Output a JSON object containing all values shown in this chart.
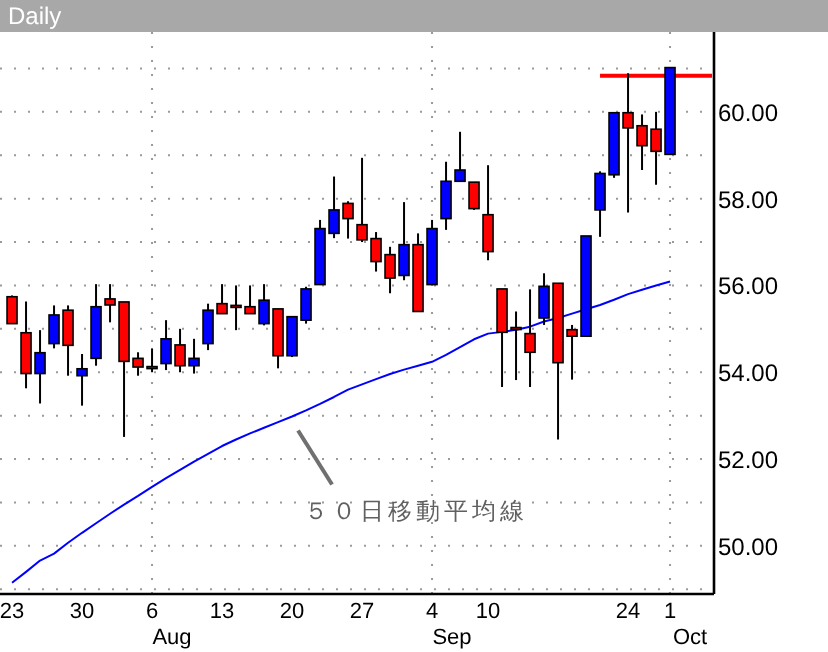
{
  "chart_data": {
    "type": "candlestick",
    "title": "Daily",
    "categories": [
      "23",
      null,
      null,
      null,
      null,
      "30",
      null,
      null,
      null,
      null,
      "6",
      null,
      null,
      null,
      null,
      "13",
      null,
      null,
      null,
      null,
      "20",
      null,
      null,
      null,
      null,
      "27",
      null,
      null,
      null,
      null,
      "4",
      null,
      null,
      null,
      "10",
      null,
      null,
      null,
      null,
      null,
      null,
      null,
      null,
      null,
      "24",
      null,
      null,
      "1",
      null,
      null,
      null
    ],
    "ohlc": [
      [
        55.74,
        55.77,
        55.12,
        55.12
      ],
      [
        54.91,
        55.63,
        53.63,
        53.97
      ],
      [
        53.97,
        54.97,
        53.28,
        54.45
      ],
      [
        54.66,
        55.54,
        54.55,
        55.32
      ],
      [
        55.43,
        55.54,
        53.92,
        54.62
      ],
      [
        53.92,
        54.42,
        53.23,
        54.08
      ],
      [
        54.32,
        56.03,
        54.15,
        55.51
      ],
      [
        55.69,
        56.03,
        55.15,
        55.55
      ],
      [
        55.62,
        55.62,
        52.51,
        54.25
      ],
      [
        54.32,
        54.46,
        53.92,
        54.12
      ],
      [
        54.13,
        54.55,
        54.0,
        54.12
      ],
      [
        54.2,
        55.2,
        54.05,
        54.77
      ],
      [
        54.63,
        55.0,
        54.0,
        54.15
      ],
      [
        54.15,
        54.77,
        53.97,
        54.32
      ],
      [
        54.66,
        55.58,
        54.51,
        55.43
      ],
      [
        55.58,
        56.03,
        55.35,
        55.35
      ],
      [
        55.54,
        56.0,
        54.97,
        55.52
      ],
      [
        55.51,
        56.0,
        55.35,
        55.35
      ],
      [
        55.12,
        56.03,
        55.08,
        55.66
      ],
      [
        55.46,
        55.46,
        54.09,
        54.38
      ],
      [
        54.38,
        55.28,
        54.35,
        55.28
      ],
      [
        55.2,
        55.97,
        55.12,
        55.92
      ],
      [
        56.02,
        57.51,
        56.02,
        57.31
      ],
      [
        57.2,
        58.51,
        57.09,
        57.74
      ],
      [
        57.89,
        57.94,
        57.08,
        57.54
      ],
      [
        57.4,
        58.94,
        57.0,
        57.05
      ],
      [
        57.08,
        57.23,
        56.32,
        56.55
      ],
      [
        56.71,
        56.89,
        55.82,
        56.17
      ],
      [
        56.23,
        57.92,
        56.12,
        56.94
      ],
      [
        56.94,
        57.2,
        55.4,
        55.4
      ],
      [
        56.02,
        57.51,
        56.02,
        57.31
      ],
      [
        57.54,
        58.85,
        57.28,
        58.4
      ],
      [
        58.4,
        59.54,
        58.4,
        58.66
      ],
      [
        58.38,
        58.38,
        57.74,
        57.77
      ],
      [
        57.63,
        58.77,
        56.58,
        56.78
      ],
      [
        55.92,
        55.92,
        53.66,
        54.92
      ],
      [
        55.03,
        55.4,
        53.82,
        55.0
      ],
      [
        54.89,
        55.91,
        53.66,
        54.46
      ],
      [
        55.25,
        56.28,
        55.09,
        55.98
      ],
      [
        56.05,
        56.05,
        52.45,
        54.22
      ],
      [
        54.98,
        55.09,
        53.83,
        54.83
      ],
      [
        54.83,
        57.14,
        54.83,
        57.14
      ],
      [
        57.74,
        58.63,
        57.12,
        58.58
      ],
      [
        58.55,
        59.98,
        58.48,
        59.98
      ],
      [
        59.98,
        60.89,
        57.68,
        59.63
      ],
      [
        59.68,
        59.94,
        58.66,
        59.22
      ],
      [
        59.6,
        60.0,
        58.32,
        59.09
      ],
      [
        59.02,
        61.02,
        59.02,
        61.02
      ],
      null,
      null,
      null
    ],
    "colors": [
      "#ff0000",
      "#ff0000",
      "#0000ff",
      "#0000ff",
      "#ff0000",
      "#0000ff",
      "#0000ff",
      "#ff0000",
      "#ff0000",
      "#ff0000",
      "#ff0000",
      "#0000ff",
      "#ff0000",
      "#0000ff",
      "#0000ff",
      "#ff0000",
      "#ff0000",
      "#ff0000",
      "#0000ff",
      "#ff0000",
      "#0000ff",
      "#0000ff",
      "#0000ff",
      "#0000ff",
      "#ff0000",
      "#ff0000",
      "#ff0000",
      "#ff0000",
      "#0000ff",
      "#ff0000",
      "#0000ff",
      "#0000ff",
      "#0000ff",
      "#ff0000",
      "#ff0000",
      "#ff0000",
      "#ff0000",
      "#ff0000",
      "#0000ff",
      "#ff0000",
      "#ff0000",
      "#0000ff",
      "#0000ff",
      "#0000ff",
      "#ff0000",
      "#ff0000",
      "#ff0000",
      "#0000ff",
      null,
      null,
      null
    ],
    "series": [
      {
        "type": "line",
        "color": "#0000ff",
        "values": [
          49.15,
          49.4,
          49.66,
          49.82,
          50.07,
          50.3,
          50.52,
          50.74,
          50.95,
          51.15,
          51.36,
          51.56,
          51.75,
          51.94,
          52.12,
          52.3,
          52.45,
          52.59,
          52.72,
          52.85,
          52.98,
          53.12,
          53.27,
          53.43,
          53.6,
          53.72,
          53.84,
          53.96,
          54.06,
          54.15,
          54.24,
          54.4,
          54.58,
          54.76,
          54.89,
          54.93,
          54.98,
          55.05,
          55.17,
          55.25,
          55.35,
          55.45,
          55.55,
          55.67,
          55.8,
          55.9,
          56.0,
          56.09,
          null,
          null,
          null
        ]
      },
      {
        "type": "line",
        "color": "#ff0000",
        "values": [
          null,
          null,
          null,
          null,
          null,
          null,
          null,
          null,
          null,
          null,
          null,
          null,
          null,
          null,
          null,
          null,
          null,
          null,
          null,
          null,
          null,
          null,
          null,
          null,
          null,
          null,
          null,
          null,
          null,
          null,
          null,
          null,
          null,
          null,
          null,
          null,
          null,
          null,
          null,
          null,
          null,
          null,
          60.83,
          60.83,
          60.83,
          60.83,
          60.83,
          60.83,
          60.83,
          60.83,
          60.83
        ]
      }
    ],
    "ylim": [
      48.89,
      61.84
    ],
    "yticks": [
      {
        "value": 49,
        "label": null
      },
      {
        "value": 50,
        "label": "50.00"
      },
      {
        "value": 51,
        "label": null
      },
      {
        "value": 52,
        "label": "52.00"
      },
      {
        "value": 53,
        "label": null
      },
      {
        "value": 54,
        "label": "54.00"
      },
      {
        "value": 55,
        "label": null
      },
      {
        "value": 56,
        "label": "56.00"
      },
      {
        "value": 57,
        "label": null
      },
      {
        "value": 58,
        "label": "58.00"
      },
      {
        "value": 59,
        "label": null
      },
      {
        "value": 60,
        "label": "60.00"
      },
      {
        "value": 61,
        "label": null
      }
    ],
    "grid": true,
    "annotations": [
      {
        "text": "５０日移動平均線",
        "x": "20",
        "y": 52.98
      },
      "Aug",
      "Sep",
      "Oct"
    ]
  }
}
